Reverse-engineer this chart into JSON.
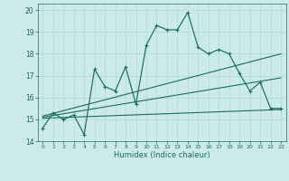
{
  "xlabel": "Humidex (Indice chaleur)",
  "bg_color": "#cdeaea",
  "line_color": "#1a6b60",
  "grid_color": "#b0d8d8",
  "xlim": [
    -0.5,
    23.5
  ],
  "ylim": [
    14.0,
    20.3
  ],
  "xticks": [
    0,
    1,
    2,
    3,
    4,
    5,
    6,
    7,
    8,
    9,
    10,
    11,
    12,
    13,
    14,
    15,
    16,
    17,
    18,
    19,
    20,
    21,
    22,
    23
  ],
  "yticks": [
    14,
    15,
    16,
    17,
    18,
    19,
    20
  ],
  "main_x": [
    0,
    1,
    2,
    3,
    4,
    5,
    6,
    7,
    8,
    9,
    10,
    11,
    12,
    13,
    14,
    15,
    16,
    17,
    18,
    19,
    20,
    21,
    22,
    23
  ],
  "main_y": [
    14.6,
    15.3,
    15.0,
    15.2,
    14.3,
    17.3,
    16.5,
    16.3,
    17.4,
    15.7,
    18.4,
    19.3,
    19.1,
    19.1,
    19.9,
    18.3,
    18.0,
    18.2,
    18.0,
    17.1,
    16.3,
    16.7,
    15.5,
    15.5
  ],
  "line1_x": [
    0,
    23
  ],
  "line1_y": [
    15.05,
    15.45
  ],
  "line2_x": [
    0,
    23
  ],
  "line2_y": [
    15.1,
    16.9
  ],
  "line3_x": [
    0,
    23
  ],
  "line3_y": [
    15.15,
    18.0
  ]
}
